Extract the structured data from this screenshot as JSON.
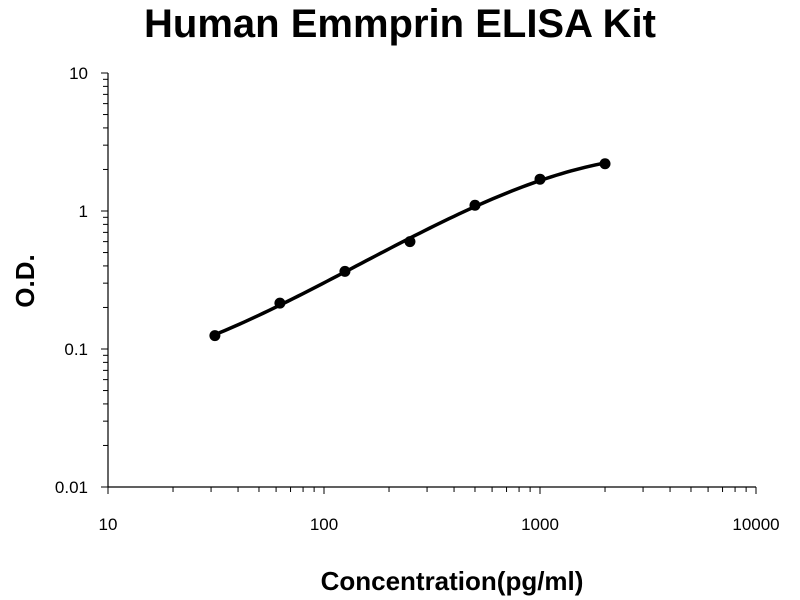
{
  "chart_data": {
    "type": "scatter",
    "title": "Human Emmprin ELISA Kit",
    "xlabel": "Concentration(pg/ml)",
    "ylabel": "O.D.",
    "xscale": "log",
    "yscale": "log",
    "xlim": [
      10,
      10000
    ],
    "ylim": [
      0.01,
      10
    ],
    "xticks": [
      "10",
      "100",
      "1000",
      "10000"
    ],
    "yticks": [
      "10",
      "1",
      "0.1",
      "0.01"
    ],
    "grid": false,
    "legend": "none",
    "series": [
      {
        "x": [
          31.25,
          62.5,
          125,
          250,
          500,
          1000,
          2000
        ],
        "y": [
          0.125,
          0.215,
          0.365,
          0.6,
          1.1,
          1.7,
          2.2
        ]
      }
    ],
    "fit_curve": true,
    "colors": {
      "line": "#000000",
      "marker": "#000000"
    }
  }
}
